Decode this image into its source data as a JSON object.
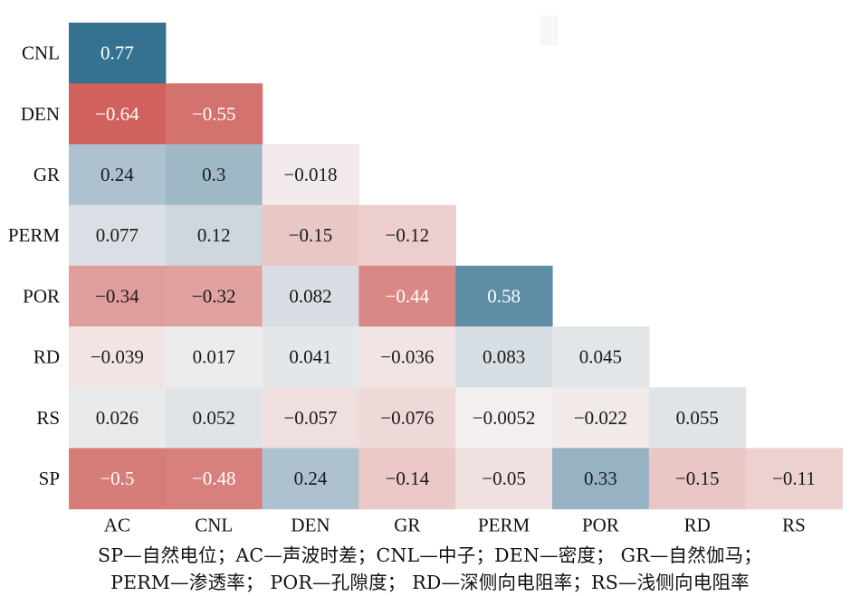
{
  "chart_data": {
    "type": "heatmap",
    "title": "",
    "xlabel": "",
    "ylabel": "",
    "columns": [
      "AC",
      "CNL",
      "DEN",
      "GR",
      "PERM",
      "POR",
      "RD",
      "RS"
    ],
    "rows": [
      "CNL",
      "DEN",
      "GR",
      "PERM",
      "POR",
      "RD",
      "RS",
      "SP"
    ],
    "labels": [
      [
        "0.77"
      ],
      [
        "−0.64",
        "−0.55"
      ],
      [
        "0.24",
        "0.3",
        "−0.018"
      ],
      [
        "0.077",
        "0.12",
        "−0.15",
        "−0.12"
      ],
      [
        "−0.34",
        "−0.32",
        "0.082",
        "−0.44",
        "0.58"
      ],
      [
        "−0.039",
        "0.017",
        "0.041",
        "−0.036",
        "0.083",
        "0.045"
      ],
      [
        "0.026",
        "0.052",
        "−0.057",
        "−0.076",
        "−0.0052",
        "−0.022",
        "0.055"
      ],
      [
        "−0.5",
        "−0.48",
        "0.24",
        "−0.14",
        "−0.05",
        "0.33",
        "−0.15",
        "−0.11"
      ]
    ],
    "values": [
      [
        0.77
      ],
      [
        -0.64,
        -0.55
      ],
      [
        0.24,
        0.3,
        -0.018
      ],
      [
        0.077,
        0.12,
        -0.15,
        -0.12
      ],
      [
        -0.34,
        -0.32,
        0.082,
        -0.44,
        0.58
      ],
      [
        -0.039,
        0.017,
        0.041,
        -0.036,
        0.083,
        0.045
      ],
      [
        0.026,
        0.052,
        -0.057,
        -0.076,
        -0.0052,
        -0.022,
        0.055
      ],
      [
        -0.5,
        -0.48,
        0.24,
        -0.14,
        -0.05,
        0.33,
        -0.15,
        -0.11
      ]
    ],
    "layout": "lower-triangle",
    "colormap": {
      "positive": "#2f6e8f",
      "neutral": "#f4f1f1",
      "negative": "#c8433e"
    },
    "colorbar": "none"
  },
  "caption": {
    "line1": "SP—自然电位；AC—声波时差；CNL—中子；DEN—密度； GR—自然伽马；",
    "line2": "PERM—渗透率； POR—孔隙度； RD—深侧向电阻率；RS—浅侧向电阻率"
  }
}
